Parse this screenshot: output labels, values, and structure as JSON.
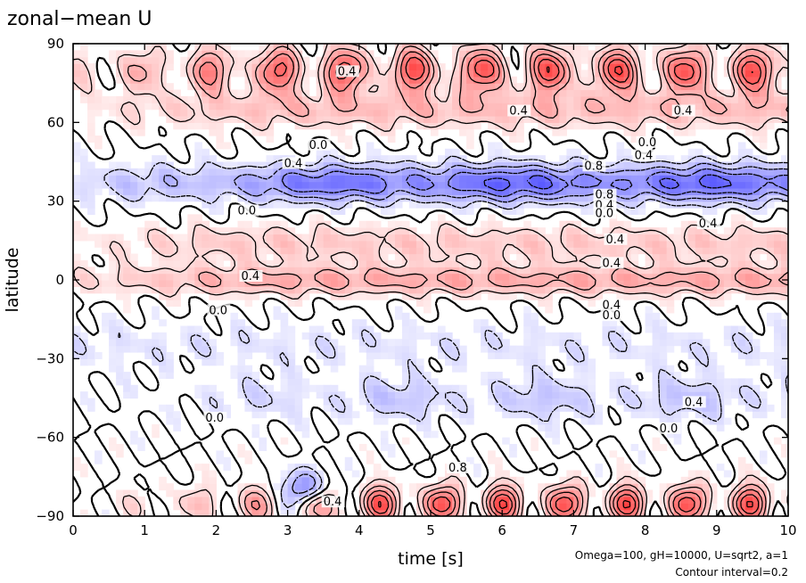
{
  "chart_data": {
    "type": "contour",
    "title": "zonal−mean U",
    "xlabel": "time [s]",
    "ylabel": "latitude",
    "xlim": [
      0,
      10
    ],
    "ylim": [
      -90,
      90
    ],
    "x_ticks": [
      "0",
      "1",
      "2",
      "3",
      "4",
      "5",
      "6",
      "7",
      "8",
      "9",
      "10"
    ],
    "y_ticks": [
      "90",
      "60",
      "30",
      "0",
      "−30",
      "−60",
      "−90"
    ],
    "annotation_lines": [
      "Omega=100, gH=10000, U=sqrt2, a=1",
      "Contour interval=0.2"
    ],
    "contour_interval": 0.2,
    "colors": {
      "positive": "#e03030",
      "negative": "#3030e0",
      "zero": "#ffffff"
    },
    "features": [
      {
        "name": "north polar jet (positive)",
        "lat_center": 80,
        "value_max": 1.0
      },
      {
        "name": "north midlatitude westerly band",
        "lat_center": 65,
        "value": 0.4
      },
      {
        "name": "northern easterly jet (negative)",
        "lat_center": 38,
        "value_min": -0.8
      },
      {
        "name": "northern subtropical westerly band",
        "lat_center": 14,
        "value": 0.4
      },
      {
        "name": "equatorial westerly jet",
        "lat_center": 0,
        "value": 0.4
      },
      {
        "name": "southern easterly band",
        "lat_center": -45,
        "value": -0.4
      },
      {
        "name": "south polar jet (positive)",
        "lat_center": -84,
        "value_max": 1.0
      }
    ],
    "contour_labels": [
      {
        "text": "0.4",
        "x": 6.1,
        "y": 63
      },
      {
        "text": "0.4",
        "x": 3.7,
        "y": 78
      },
      {
        "text": "0.4",
        "x": 8.4,
        "y": 63
      },
      {
        "text": "0.0",
        "x": 7.9,
        "y": 51
      },
      {
        "text": "0.4",
        "x": 2.95,
        "y": 43
      },
      {
        "text": "0.0",
        "x": 3.3,
        "y": 50
      },
      {
        "text": "0.8",
        "x": 7.15,
        "y": 42
      },
      {
        "text": "0.4",
        "x": 7.85,
        "y": 46
      },
      {
        "text": "0.8",
        "x": 7.3,
        "y": 31
      },
      {
        "text": "0.4",
        "x": 7.3,
        "y": 27
      },
      {
        "text": "0.0",
        "x": 7.3,
        "y": 24
      },
      {
        "text": "0.0",
        "x": 2.3,
        "y": 25
      },
      {
        "text": "0.4",
        "x": 8.75,
        "y": 20
      },
      {
        "text": "0.4",
        "x": 7.45,
        "y": 14
      },
      {
        "text": "0.4",
        "x": 7.4,
        "y": 5
      },
      {
        "text": "0.4",
        "x": 2.35,
        "y": 0
      },
      {
        "text": "0.4",
        "x": 7.4,
        "y": -11
      },
      {
        "text": "0.0",
        "x": 7.4,
        "y": -15
      },
      {
        "text": "0.0",
        "x": 1.9,
        "y": -13
      },
      {
        "text": "0.4",
        "x": 8.55,
        "y": -48
      },
      {
        "text": "0.0",
        "x": 1.85,
        "y": -54
      },
      {
        "text": "0.0",
        "x": 8.2,
        "y": -58
      },
      {
        "text": "0.8",
        "x": 5.25,
        "y": -73
      },
      {
        "text": "0.4",
        "x": 3.5,
        "y": -86
      }
    ]
  }
}
